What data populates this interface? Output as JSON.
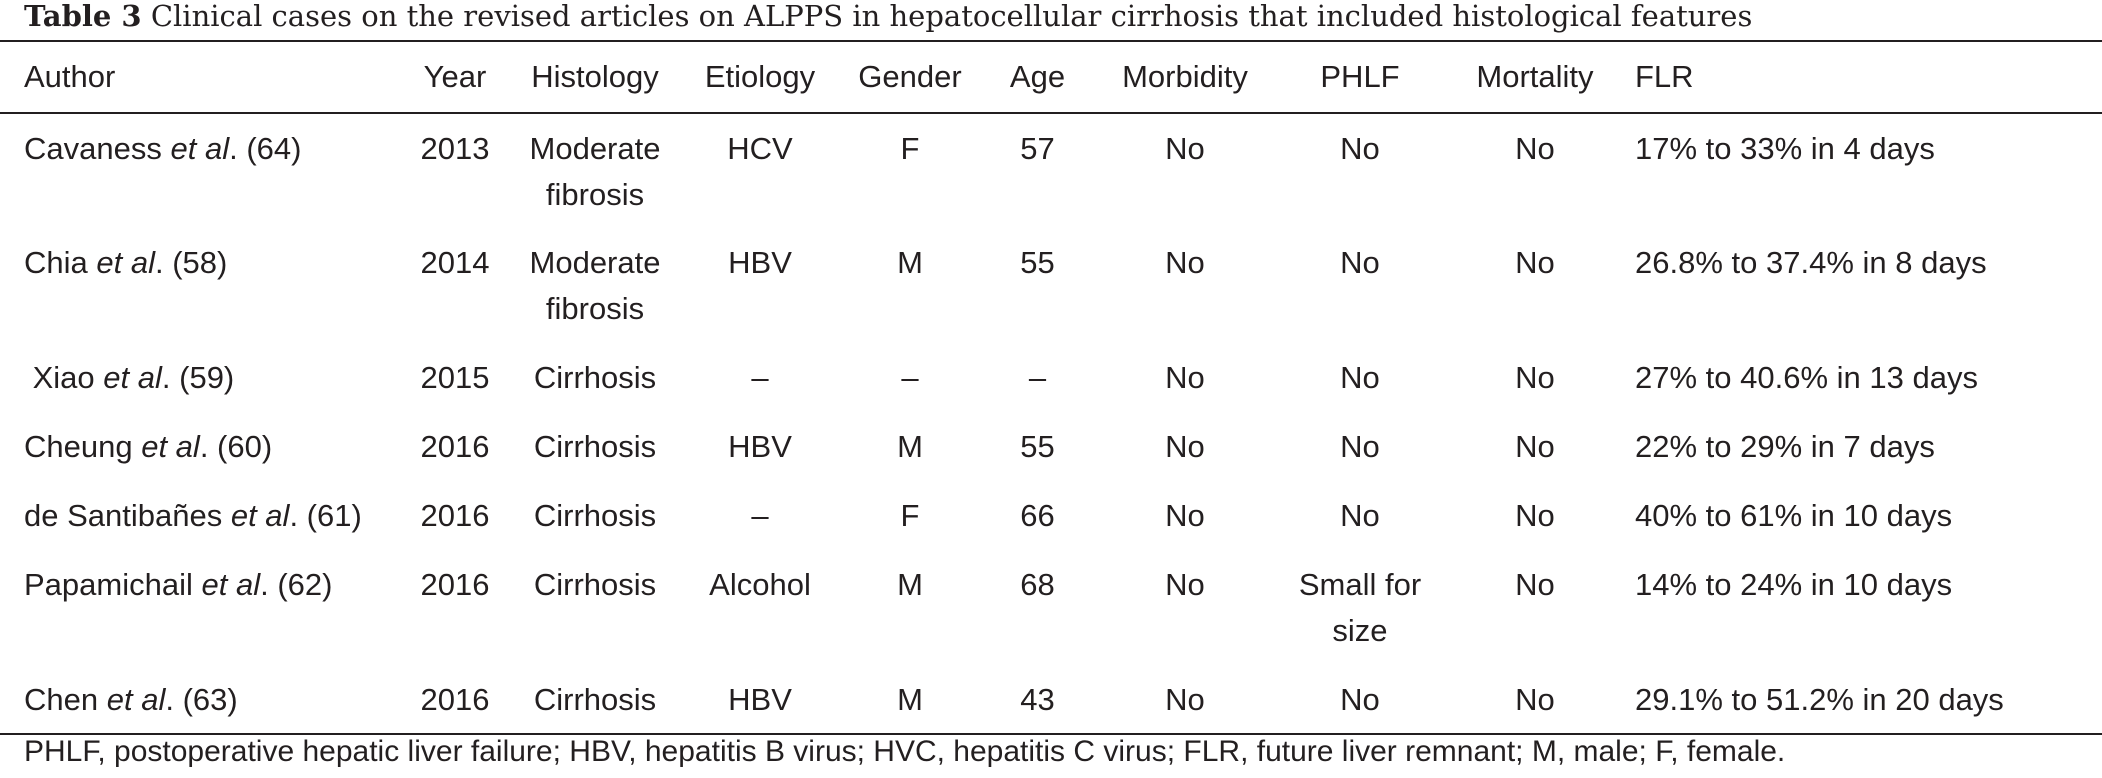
{
  "title": {
    "label": "Table 3",
    "text": "Clinical cases on the revised articles on ALPPS in hepatocellular cirrhosis that included histological features"
  },
  "headers": [
    "Author",
    "Year",
    "Histology",
    "Etiology",
    "Gender",
    "Age",
    "Morbidity",
    "PHLF",
    "Mortality",
    "FLR"
  ],
  "rows": [
    {
      "author_name": "Cavaness",
      "author_etal": "et al",
      "author_ref": ". (64)",
      "year": "2013",
      "histology_1": "Moderate",
      "histology_2": "fibrosis",
      "etiology": "HCV",
      "gender": "F",
      "age": "57",
      "morbidity": "No",
      "phlf_1": "No",
      "phlf_2": "",
      "mortality": "No",
      "flr": "17% to 33% in 4 days"
    },
    {
      "author_name": "Chia",
      "author_etal": "et al",
      "author_ref": ". (58)",
      "year": "2014",
      "histology_1": "Moderate",
      "histology_2": "fibrosis",
      "etiology": "HBV",
      "gender": "M",
      "age": "55",
      "morbidity": "No",
      "phlf_1": "No",
      "phlf_2": "",
      "mortality": "No",
      "flr": "26.8% to 37.4% in 8 days"
    },
    {
      "author_name": " Xiao",
      "author_etal": "et al",
      "author_ref": ". (59)",
      "year": "2015",
      "histology_1": "Cirrhosis",
      "histology_2": "",
      "etiology": "–",
      "gender": "–",
      "age": "–",
      "morbidity": "No",
      "phlf_1": "No",
      "phlf_2": "",
      "mortality": "No",
      "flr": "27% to 40.6% in 13 days"
    },
    {
      "author_name": "Cheung",
      "author_etal": "et al",
      "author_ref": ". (60)",
      "year": "2016",
      "histology_1": "Cirrhosis",
      "histology_2": "",
      "etiology": "HBV",
      "gender": "M",
      "age": "55",
      "morbidity": "No",
      "phlf_1": "No",
      "phlf_2": "",
      "mortality": "No",
      "flr": "22% to 29% in 7 days"
    },
    {
      "author_name": "de Santibañes",
      "author_etal": "et al",
      "author_ref": ". (61)",
      "year": "2016",
      "histology_1": "Cirrhosis",
      "histology_2": "",
      "etiology": "–",
      "gender": "F",
      "age": "66",
      "morbidity": "No",
      "phlf_1": "No",
      "phlf_2": "",
      "mortality": "No",
      "flr": "40% to 61% in 10 days"
    },
    {
      "author_name": "Papamichail",
      "author_etal": "et al",
      "author_ref": ". (62)",
      "year": "2016",
      "histology_1": "Cirrhosis",
      "histology_2": "",
      "etiology": "Alcohol",
      "gender": "M",
      "age": "68",
      "morbidity": "No",
      "phlf_1": "Small for",
      "phlf_2": "size",
      "mortality": "No",
      "flr": "14% to 24% in 10 days"
    },
    {
      "author_name": "Chen",
      "author_etal": "et al",
      "author_ref": ". (63)",
      "year": "2016",
      "histology_1": "Cirrhosis",
      "histology_2": "",
      "etiology": "HBV",
      "gender": "M",
      "age": "43",
      "morbidity": "No",
      "phlf_1": "No",
      "phlf_2": "",
      "mortality": "No",
      "flr": "29.1% to 51.2% in 20 days"
    }
  ],
  "footnote": "PHLF, postoperative hepatic liver failure; HBV, hepatitis B virus; HVC, hepatitis C virus; FLR, future liver remnant; M, male; F, female."
}
